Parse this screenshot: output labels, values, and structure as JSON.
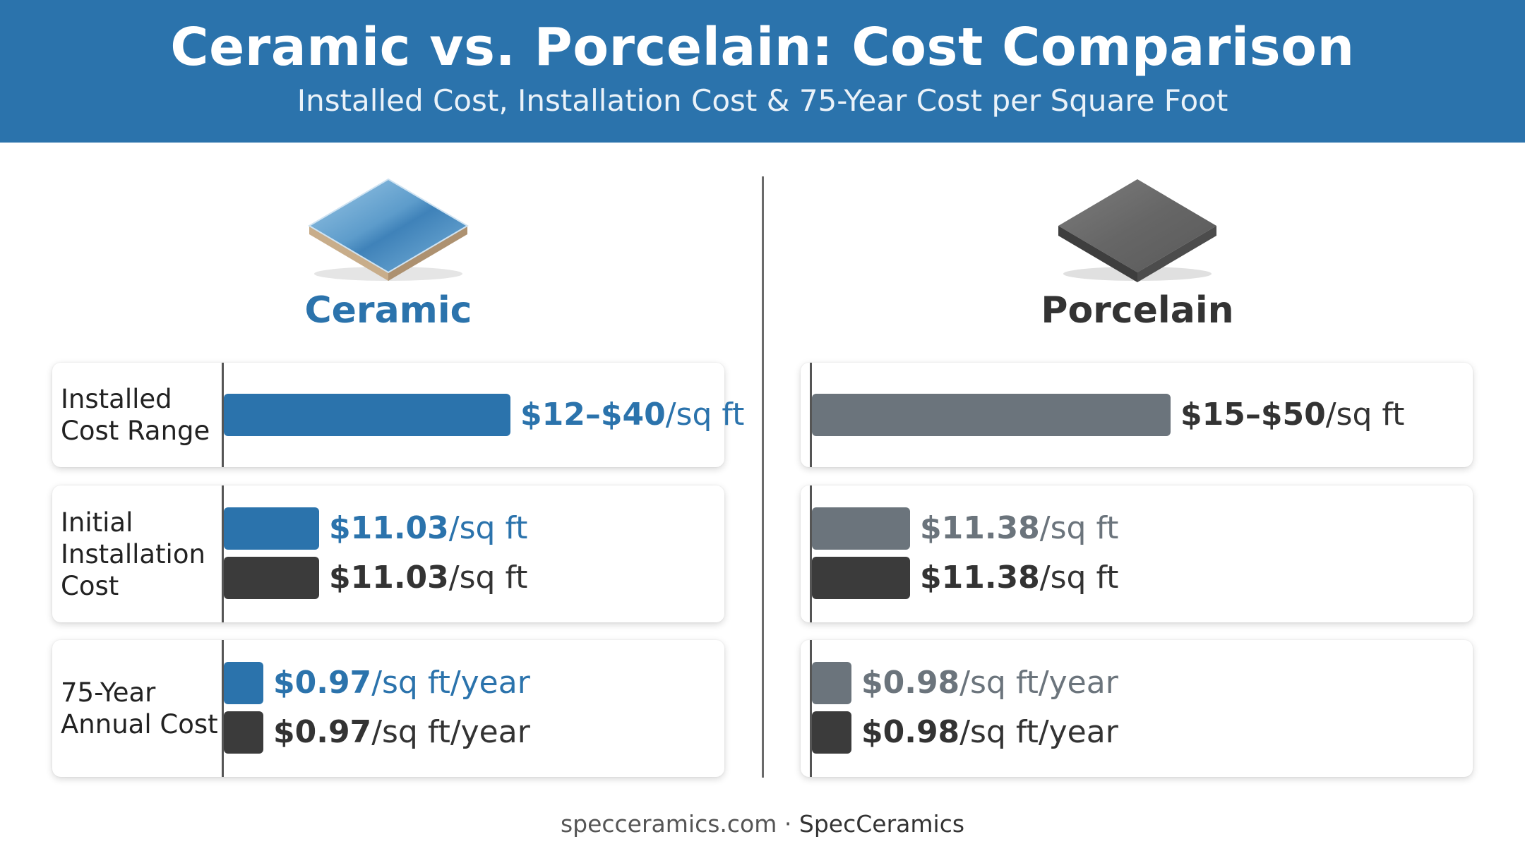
{
  "header": {
    "title": "Ceramic vs. Porcelain: Cost Comparison",
    "subtitle": "Installed Cost, Installation Cost & 75-Year Cost per Square Foot"
  },
  "footer": {
    "site": "specceramics.com",
    "separator": "·",
    "brand": "SpecCeramics"
  },
  "colors": {
    "header_bg": "#2b73ac",
    "ceramic_blue": "#2b73ac",
    "porcelain_gray": "#6b747c",
    "dark_bar": "#3b3b3b"
  },
  "chart_data": {
    "type": "bar",
    "title": "Ceramic vs. Porcelain: Cost Comparison",
    "subtitle": "Installed Cost, Installation Cost & 75-Year Cost per Square Foot",
    "panels": [
      {
        "name": "Ceramic",
        "icon": "ceramic-tile-icon",
        "color": "#2b73ac",
        "rows": [
          {
            "label": [
              "Installed",
              "Cost Range"
            ],
            "bars": [
              {
                "value": [
                  12,
                  40
                ],
                "value_text": "$12–$40",
                "unit": "/sq ft",
                "color": "#2b73ac",
                "text_color": "#2b73ac"
              }
            ]
          },
          {
            "label": [
              "Initial",
              "Installation",
              "Cost"
            ],
            "bars": [
              {
                "value": 11.03,
                "value_text": "$11.03",
                "unit": "/sq ft",
                "color": "#2b73ac",
                "text_color": "#2b73ac"
              },
              {
                "value": 11.03,
                "value_text": "$11.03",
                "unit": "/sq ft",
                "color": "#3b3b3b",
                "text_color": "#333333"
              }
            ]
          },
          {
            "label": [
              "75-Year",
              "Annual Cost"
            ],
            "bars": [
              {
                "value": 0.97,
                "value_text": "$0.97",
                "unit": "/sq ft/year",
                "color": "#2b73ac",
                "text_color": "#2b73ac"
              },
              {
                "value": 0.97,
                "value_text": "$0.97",
                "unit": "/sq ft/year",
                "color": "#3b3b3b",
                "text_color": "#333333"
              }
            ]
          }
        ]
      },
      {
        "name": "Porcelain",
        "icon": "porcelain-tile-icon",
        "color": "#333333",
        "rows": [
          {
            "label": [],
            "bars": [
              {
                "value": [
                  15,
                  50
                ],
                "value_text": "$15–$50",
                "unit": "/sq ft",
                "color": "#6b747c",
                "text_color": "#333333"
              }
            ]
          },
          {
            "label": [],
            "bars": [
              {
                "value": 11.38,
                "value_text": "$11.38",
                "unit": "/sq ft",
                "color": "#6b747c",
                "text_color": "#6b747c"
              },
              {
                "value": 11.38,
                "value_text": "$11.38",
                "unit": "/sq ft",
                "color": "#3b3b3b",
                "text_color": "#333333"
              }
            ]
          },
          {
            "label": [],
            "bars": [
              {
                "value": 0.98,
                "value_text": "$0.98",
                "unit": "/sq ft/year",
                "color": "#6b747c",
                "text_color": "#6b747c"
              },
              {
                "value": 0.98,
                "value_text": "$0.98",
                "unit": "/sq ft/year",
                "color": "#3b3b3b",
                "text_color": "#333333"
              }
            ]
          }
        ]
      }
    ]
  }
}
